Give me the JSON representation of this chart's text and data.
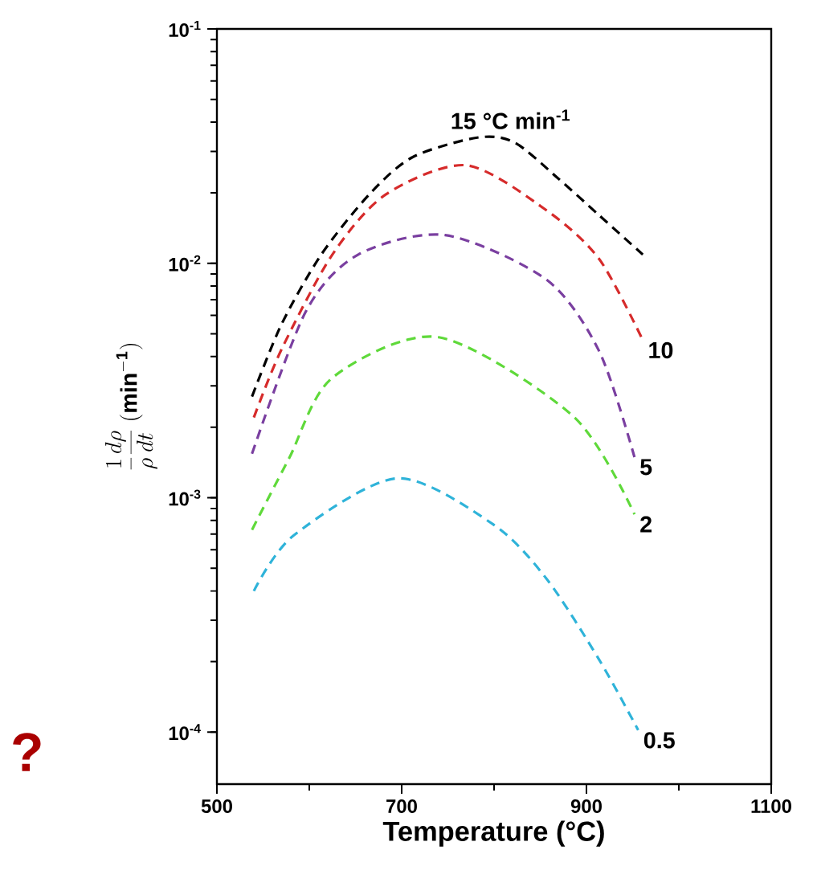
{
  "chart_data": {
    "type": "line",
    "xlabel": "Temperature (°C)",
    "ylabel": "\\frac{1}{\\rho}\\frac{d\\rho}{dt}\\ (\\mathbf{min^{-1}})",
    "log": "y",
    "line_style": "dashed",
    "marker": "none",
    "xlim": [
      500,
      1100
    ],
    "xticks": [
      500,
      700,
      900,
      1100
    ],
    "ylim": [
      6e-05,
      0.1
    ],
    "yticks": [
      {
        "value": 0.0001,
        "label": "10$^{-4}$"
      },
      {
        "value": 0.001,
        "label": "10$^{-3}$"
      },
      {
        "value": 0.01,
        "label": "10$^{-2}$"
      },
      {
        "value": 0.1,
        "label": "10$^{-1}$"
      }
    ],
    "annotations": [
      "?"
    ],
    "series": [
      {
        "name": "15 °C min$^{-1}$",
        "color": "#000000",
        "x": [
          538,
          570,
          613,
          665,
          712,
          782,
          822,
          869,
          914,
          961
        ],
        "values": [
          0.0027,
          0.0055,
          0.0109,
          0.0197,
          0.0284,
          0.0344,
          0.0328,
          0.0231,
          0.016,
          0.0109
        ]
      },
      {
        "name": "10",
        "color": "#d62b2b",
        "x": [
          540,
          570,
          625,
          683,
          770,
          857,
          914,
          961
        ],
        "values": [
          0.0022,
          0.0043,
          0.0109,
          0.0197,
          0.0262,
          0.0168,
          0.0104,
          0.0047
        ]
      },
      {
        "name": "5",
        "color": "#7a3fa0",
        "x": [
          538,
          596,
          653,
          747,
          857,
          914,
          952
        ],
        "values": [
          0.00154,
          0.0062,
          0.0109,
          0.0132,
          0.0085,
          0.0042,
          0.00149
        ]
      },
      {
        "name": "2",
        "color": "#5fd93a",
        "x": [
          538,
          578,
          625,
          740,
          886,
          952
        ],
        "values": [
          0.00073,
          0.00147,
          0.00325,
          0.00484,
          0.00222,
          0.00085
        ]
      },
      {
        "name": "0.5",
        "color": "#2fb3d9",
        "x": [
          540,
          583,
          695,
          799,
          857,
          914,
          956
        ],
        "values": [
          0.0004,
          0.00069,
          0.00121,
          0.00077,
          0.00045,
          0.000203,
          0.000102
        ]
      }
    ]
  }
}
